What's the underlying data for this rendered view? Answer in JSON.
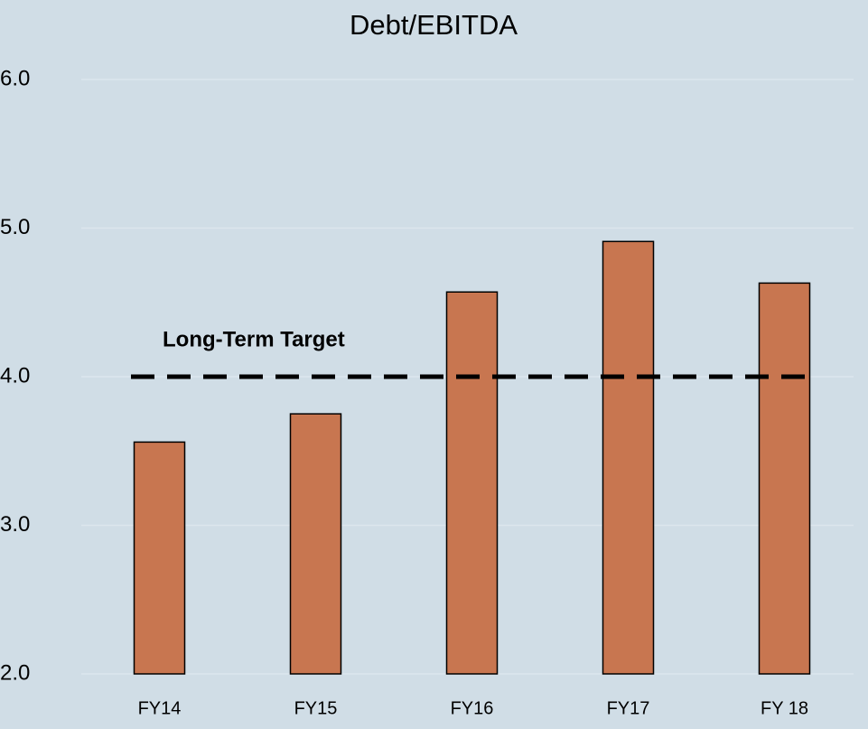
{
  "chart_data": {
    "type": "bar",
    "title": "Debt/EBITDA",
    "categories": [
      "FY14",
      "FY15",
      "FY16",
      "FY17",
      "FY 18"
    ],
    "values": [
      3.56,
      3.75,
      4.57,
      4.91,
      4.63
    ],
    "color": "#c87650",
    "ylim": [
      2,
      6
    ],
    "yticks": [
      {
        "value": 2,
        "label": "2.0"
      },
      {
        "value": 3,
        "label": "3.0"
      },
      {
        "value": 4,
        "label": "4.0"
      },
      {
        "value": 5,
        "label": "5.0"
      },
      {
        "value": 6,
        "label": "6.0"
      }
    ],
    "grid": true,
    "reference_line": {
      "value": 4,
      "label": "Long-Term Target"
    }
  }
}
